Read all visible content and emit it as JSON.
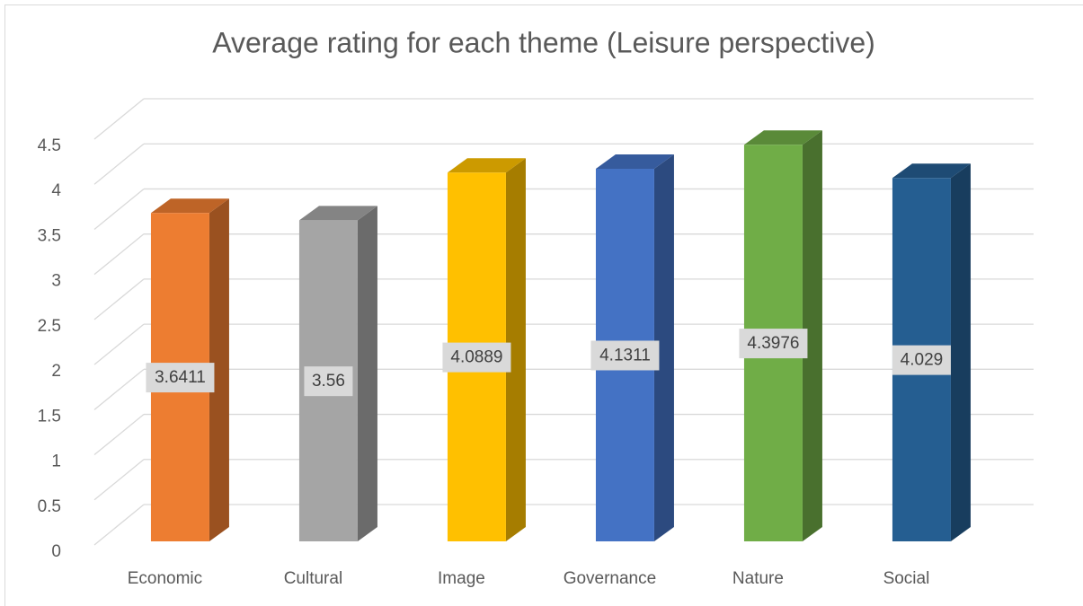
{
  "chart_data": {
    "type": "bar3d",
    "title": "Average rating for each theme (Leisure perspective)",
    "categories": [
      "Economic",
      "Cultural",
      "Image",
      "Governance",
      "Nature",
      "Social"
    ],
    "series": [
      {
        "name": "Average rating",
        "values": [
          3.6411,
          3.56,
          4.0889,
          4.1311,
          4.3976,
          4.029
        ]
      }
    ],
    "colors": [
      "#ed7d31",
      "#a5a5a5",
      "#ffc000",
      "#4472c4",
      "#70ad47",
      "#255e91"
    ],
    "ylim": [
      0,
      4.5
    ],
    "yticks": [
      0,
      0.5,
      1,
      1.5,
      2,
      2.5,
      3,
      3.5,
      4,
      4.5
    ],
    "grid": true
  }
}
